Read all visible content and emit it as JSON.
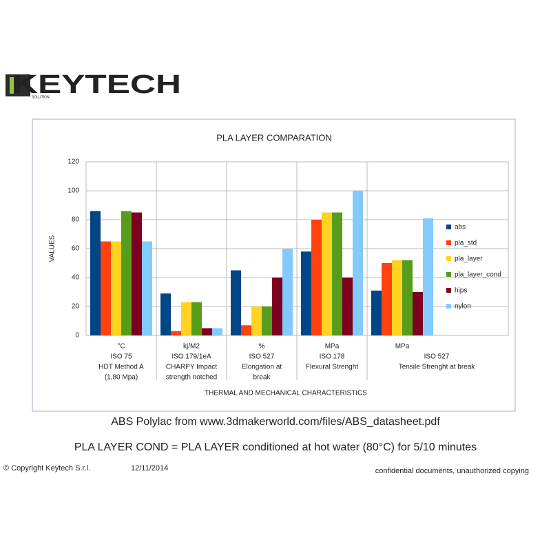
{
  "logo": {
    "name": "KEYTECH",
    "tagline": "SOLUTION"
  },
  "chart_data": {
    "type": "bar",
    "title": "PLA LAYER COMPARATION",
    "y_label": "VALUES",
    "x_label": "THERMAL AND MECHANICAL CHARACTERISTICS",
    "categories": [
      [
        "°C",
        "ISO 75",
        "HDT Method A",
        "(1,80 Mpa)"
      ],
      [
        "kj/M2",
        "ISO 179/1eA",
        "CHARPY Impact",
        "strength notched"
      ],
      [
        "%",
        "ISO 527",
        "Elongation at",
        "break"
      ],
      [
        "MPa",
        "ISO 178",
        "Flexural Strenght"
      ],
      [
        "MPa",
        "ISO 527",
        "Tensile Strenght at break"
      ]
    ],
    "series": [
      {
        "name": "abs",
        "color": "#004586",
        "values": [
          86,
          29,
          45,
          58,
          31
        ]
      },
      {
        "name": "pla_std",
        "color": "#ff420e",
        "values": [
          65,
          3,
          7,
          80,
          50
        ]
      },
      {
        "name": "pla_layer",
        "color": "#ffd320",
        "values": [
          65,
          23,
          20,
          85,
          52
        ]
      },
      {
        "name": "pla_layer_cond",
        "color": "#579d1c",
        "values": [
          86,
          23,
          20,
          85,
          52
        ]
      },
      {
        "name": "hips",
        "color": "#7e0021",
        "values": [
          85,
          5,
          40,
          40,
          30
        ]
      },
      {
        "name": "nylon",
        "color": "#83caff",
        "values": [
          65,
          5,
          60,
          100,
          81
        ]
      }
    ],
    "ylim": [
      0,
      120
    ],
    "yticks": [
      0,
      20,
      40,
      60,
      80,
      100,
      120
    ],
    "grid": true,
    "legend": "right"
  },
  "captions": [
    "ABS Polylac from www.3dmakerworld.com/files/ABS_datasheet.pdf",
    "PLA LAYER COND = PLA LAYER conditioned at hot water (80°C) for 5/10 minutes"
  ],
  "footer": {
    "copyright": "© Copyright Keytech S.r.l.",
    "date": "12/11/2014",
    "notice": "confidential documents, unauthorized copying"
  }
}
